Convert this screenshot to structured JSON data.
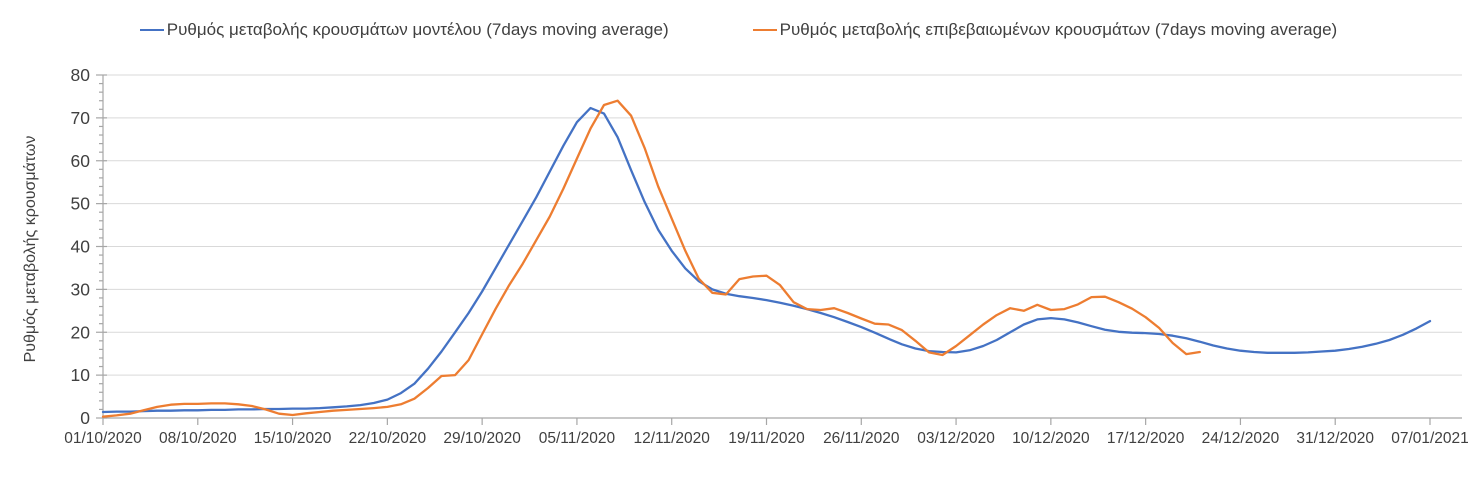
{
  "y_axis_title": "Ρυθμός μεταβολής κρουσμάτων",
  "colors": {
    "model_line": "#4472c4",
    "confirmed_line": "#ed7d31",
    "gridline": "#d9d9d9",
    "axis": "#a6a6a6",
    "label_text": "#404040"
  },
  "chart_data": {
    "type": "line",
    "title": "",
    "xlabel": "",
    "ylabel": "Ρυθμός μεταβολής κρουσμάτων",
    "ylim": [
      0,
      80
    ],
    "y_ticks": [
      0,
      10,
      20,
      30,
      40,
      50,
      60,
      70,
      80
    ],
    "y_minor_tick_step": 2,
    "grid": "horizontal",
    "legend_position": "top",
    "x_start_date": "01/10/2020",
    "x_interval": "daily",
    "x_tick_labels": [
      "01/10/2020",
      "08/10/2020",
      "15/10/2020",
      "22/10/2020",
      "29/10/2020",
      "05/11/2020",
      "12/11/2020",
      "19/11/2020",
      "26/11/2020",
      "03/12/2020",
      "10/12/2020",
      "17/12/2020",
      "24/12/2020",
      "31/12/2020",
      "07/01/2021"
    ],
    "series": [
      {
        "name": "Ρυθμός μεταβολής κρουσμάτων μοντέλου (7days moving average)",
        "color": "#4472c4",
        "first_date": "01/10/2020",
        "last_date": "07/01/2021",
        "values": [
          1.4,
          1.5,
          1.5,
          1.6,
          1.7,
          1.7,
          1.8,
          1.8,
          1.9,
          1.9,
          2.0,
          2.0,
          2.1,
          2.1,
          2.2,
          2.2,
          2.3,
          2.5,
          2.7,
          3.0,
          3.5,
          4.3,
          5.8,
          8.0,
          11.5,
          15.5,
          20.0,
          24.5,
          29.5,
          35.0,
          40.5,
          46.0,
          51.5,
          57.5,
          63.5,
          69.0,
          72.3,
          71.0,
          65.5,
          57.8,
          50.4,
          43.9,
          39.0,
          34.9,
          31.9,
          30.0,
          29.0,
          28.4,
          28.0,
          27.5,
          26.9,
          26.2,
          25.4,
          24.5,
          23.5,
          22.4,
          21.2,
          19.9,
          18.5,
          17.2,
          16.2,
          15.6,
          15.4,
          15.3,
          15.8,
          16.8,
          18.2,
          20.0,
          21.8,
          23.0,
          23.3,
          23.0,
          22.3,
          21.4,
          20.6,
          20.1,
          19.9,
          19.8,
          19.6,
          19.2,
          18.6,
          17.8,
          16.9,
          16.2,
          15.7,
          15.4,
          15.2,
          15.2,
          15.2,
          15.3,
          15.5,
          15.7,
          16.1,
          16.6,
          17.3,
          18.2,
          19.4,
          20.9,
          22.6
        ]
      },
      {
        "name": "Ρυθμός μεταβολής επιβεβαιωμένων κρουσμάτων (7days moving average)",
        "color": "#ed7d31",
        "first_date": "01/10/2020",
        "last_date": "21/12/2020",
        "values": [
          0.3,
          0.6,
          1.0,
          1.8,
          2.6,
          3.1,
          3.3,
          3.3,
          3.4,
          3.4,
          3.2,
          2.8,
          2.0,
          1.0,
          0.7,
          1.1,
          1.4,
          1.7,
          1.9,
          2.1,
          2.3,
          2.6,
          3.2,
          4.5,
          7.0,
          9.8,
          10.0,
          13.5,
          19.5,
          25.5,
          31.0,
          36.0,
          41.5,
          47.0,
          53.5,
          60.5,
          67.5,
          73.0,
          74.0,
          70.5,
          63.0,
          54.0,
          46.5,
          39.0,
          32.5,
          29.2,
          28.8,
          32.4,
          33.0,
          33.2,
          31.0,
          27.0,
          25.4,
          25.2,
          25.6,
          24.5,
          23.2,
          22.0,
          21.8,
          20.5,
          18.0,
          15.3,
          14.7,
          16.8,
          19.3,
          21.8,
          24.0,
          25.6,
          25.0,
          26.4,
          25.2,
          25.4,
          26.5,
          28.2,
          28.3,
          27.0,
          25.5,
          23.5,
          21.0,
          17.5,
          14.9,
          15.4
        ]
      }
    ]
  }
}
